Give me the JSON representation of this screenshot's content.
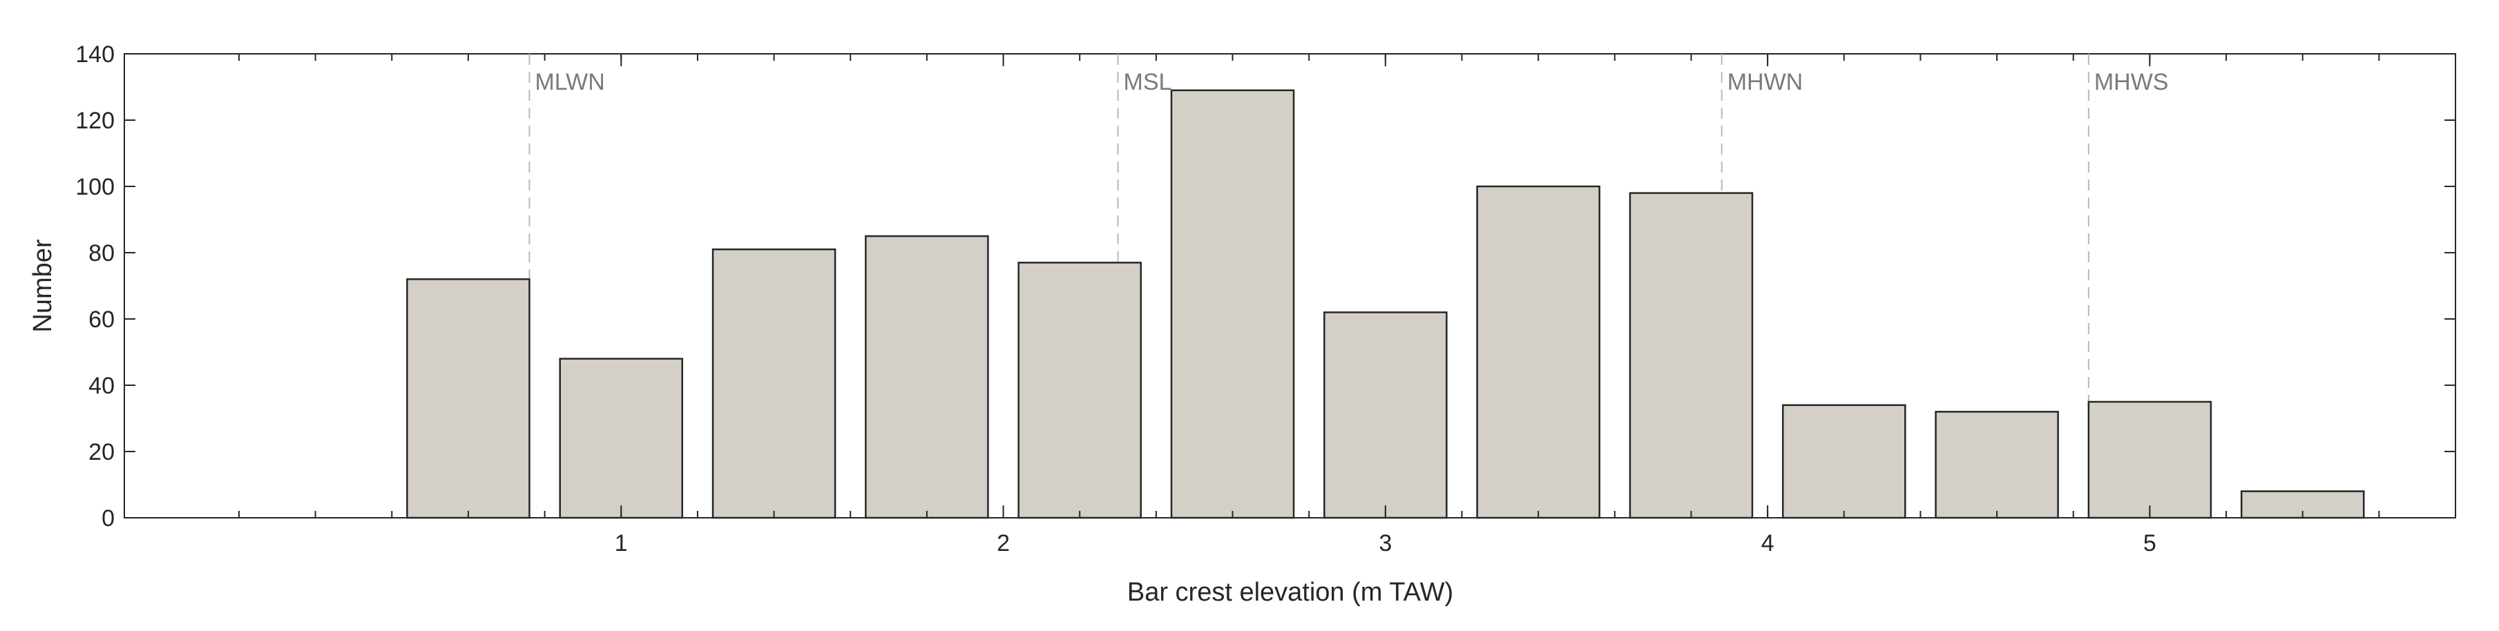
{
  "chart_data": {
    "type": "bar",
    "xlabel": "Bar crest elevation (m TAW)",
    "ylabel": "Number",
    "xlim": [
      -0.3,
      5.8
    ],
    "ylim": [
      0,
      140
    ],
    "xticks": [
      1,
      2,
      3,
      4,
      5
    ],
    "yticks": [
      0,
      20,
      40,
      60,
      80,
      100,
      120,
      140
    ],
    "bar_width": 0.32,
    "x": [
      0.6,
      1.0,
      1.4,
      1.8,
      2.2,
      2.6,
      3.0,
      3.4,
      3.8,
      4.2,
      4.6,
      5.0,
      5.4
    ],
    "values": [
      72,
      48,
      81,
      85,
      77,
      129,
      62,
      100,
      98,
      34,
      32,
      35,
      8
    ],
    "bar_color": "#d4cfc7",
    "reference_lines": [
      {
        "label": "MLWN",
        "x": 0.76
      },
      {
        "label": "MSL",
        "x": 2.3
      },
      {
        "label": "MHWN",
        "x": 3.88
      },
      {
        "label": "MHWS",
        "x": 4.84
      }
    ],
    "grid": false,
    "legend": "none"
  }
}
